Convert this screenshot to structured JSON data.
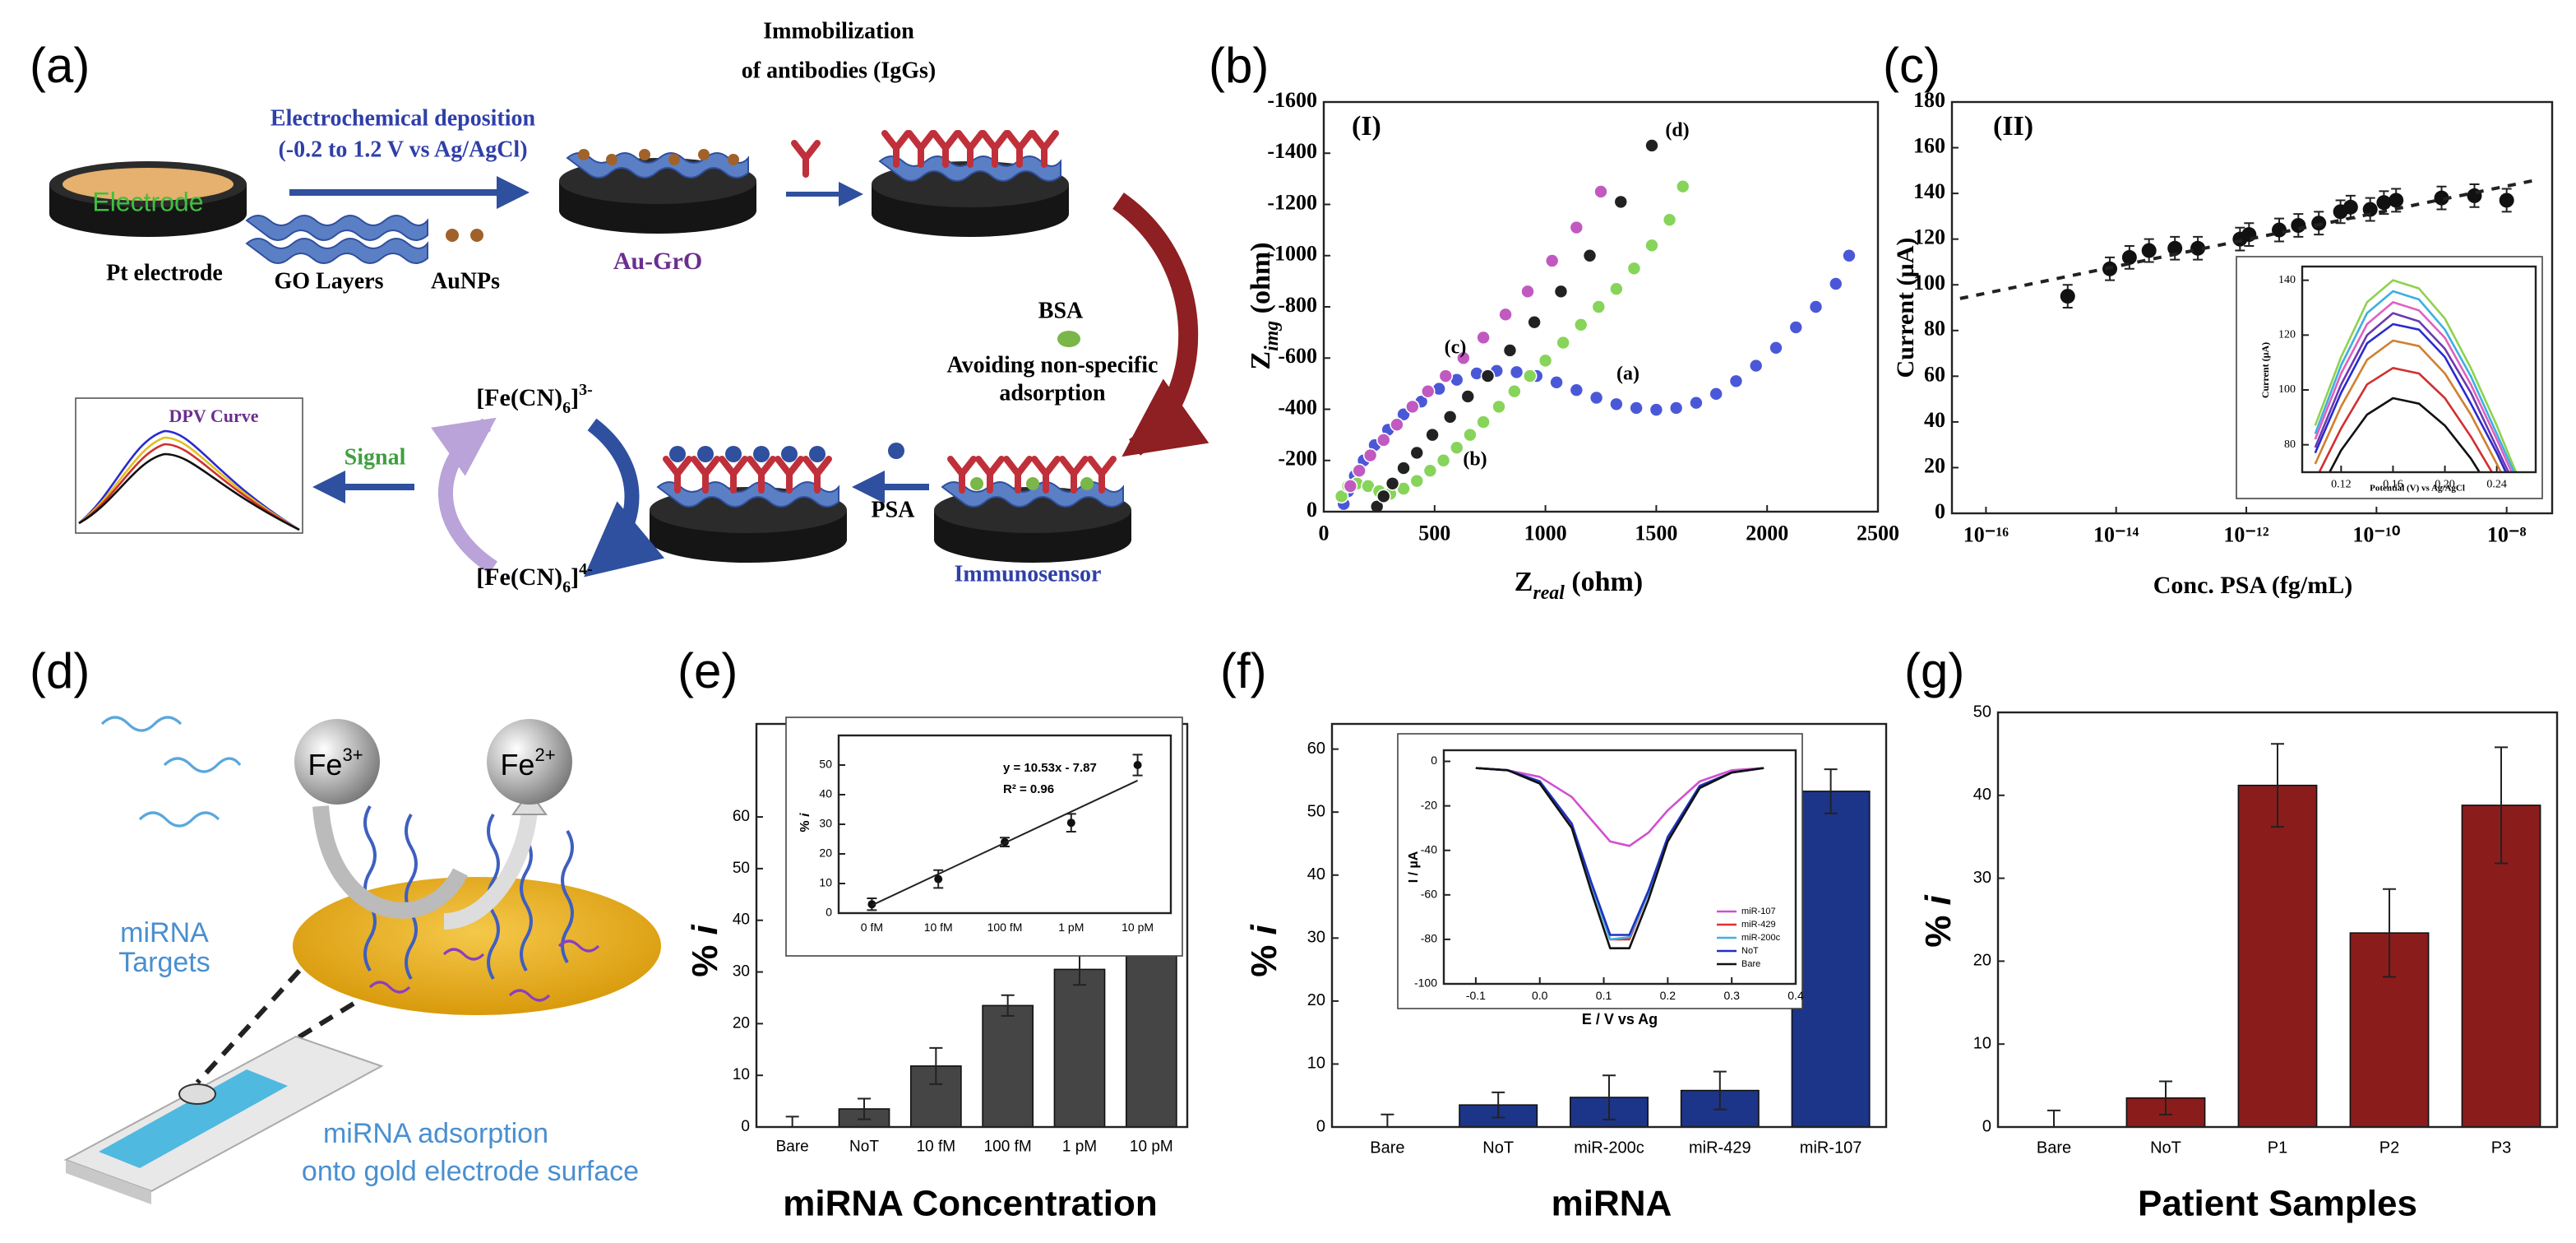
{
  "panel_labels": [
    "(a)",
    "(b)",
    "(c)",
    "(d)",
    "(e)",
    "(f)",
    "(g)"
  ],
  "diagram_a": {
    "electrode": "Electrode",
    "pt_electrode": "Pt electrode",
    "deposition": [
      "Electrochemical deposition",
      "(-0.2 to 1.2 V vs Ag/AgCl)"
    ],
    "go_layers": "GO Layers",
    "aunps": "AuNPs",
    "au_gro": "Au-GrO",
    "immobilization": [
      "Immobilization",
      "of antibodies (IgGs)"
    ],
    "bsa": "BSA",
    "avoiding": [
      "Avoiding non-specific",
      "adsorption"
    ],
    "immunosensor": "Immunosensor",
    "psa": "PSA",
    "fe_3": [
      "[Fe(CN)",
      "6",
      "]",
      "3-"
    ],
    "fe_4": [
      "[Fe(CN)",
      "6",
      "]",
      "4-"
    ],
    "signal": "Signal",
    "dpv_curve": "DPV Curve"
  },
  "diagram_d": {
    "fe3": [
      "Fe",
      "3+"
    ],
    "fe2": [
      "Fe",
      "2+"
    ],
    "targets": [
      "miRNA",
      "Targets"
    ],
    "adsorption": [
      "miRNA adsorption",
      "onto gold electrode surface"
    ]
  },
  "chart_data": [
    {
      "type": "scatter",
      "title": "(I)",
      "xlabel": [
        "Z",
        "real",
        " (ohm)"
      ],
      "ylabel": [
        "Z",
        "img",
        " (ohm)"
      ],
      "xlim": [
        0,
        2500
      ],
      "xticks": [
        0,
        500,
        1000,
        1500,
        2000,
        2500
      ],
      "ylim": [
        0,
        -1600
      ],
      "yticks": [
        0,
        -200,
        -400,
        -600,
        -800,
        -1000,
        -1200,
        -1400,
        -1600
      ],
      "series": [
        {
          "name": "(a)",
          "color": "#4a58d8",
          "x": [
            90,
            110,
            140,
            180,
            230,
            290,
            360,
            440,
            520,
            600,
            690,
            780,
            870,
            960,
            1050,
            1140,
            1230,
            1320,
            1410,
            1500,
            1590,
            1680,
            1770,
            1860,
            1950,
            2040,
            2130,
            2220,
            2310,
            2370
          ],
          "values": [
            -30,
            -80,
            -140,
            -200,
            -260,
            -320,
            -380,
            -430,
            -480,
            -515,
            -540,
            -550,
            -545,
            -530,
            -505,
            -475,
            -445,
            -420,
            -405,
            -398,
            -405,
            -425,
            -460,
            -510,
            -570,
            -640,
            -720,
            -800,
            -890,
            -1000
          ]
        },
        {
          "name": "(b)",
          "color": "#86d45a",
          "x": [
            80,
            110,
            150,
            200,
            250,
            300,
            360,
            420,
            480,
            540,
            600,
            660,
            720,
            790,
            860,
            930,
            1000,
            1080,
            1160,
            1240,
            1320,
            1400,
            1480,
            1560,
            1620
          ],
          "values": [
            -60,
            -100,
            -110,
            -100,
            -80,
            -70,
            -90,
            -120,
            -160,
            -200,
            -250,
            -300,
            -350,
            -410,
            -470,
            -530,
            -590,
            -660,
            -730,
            -800,
            -870,
            -950,
            -1040,
            -1140,
            -1270
          ]
        },
        {
          "name": "(c)",
          "color": "#c05ac0",
          "x": [
            120,
            160,
            210,
            270,
            330,
            400,
            470,
            550,
            630,
            720,
            820,
            920,
            1030,
            1140,
            1250
          ],
          "values": [
            -100,
            -160,
            -220,
            -280,
            -340,
            -410,
            -470,
            -530,
            -600,
            -680,
            -770,
            -860,
            -980,
            -1110,
            -1250
          ]
        },
        {
          "name": "(d)",
          "color": "#222222",
          "x": [
            240,
            270,
            310,
            360,
            420,
            490,
            570,
            650,
            740,
            840,
            950,
            1070,
            1200,
            1340,
            1480
          ],
          "values": [
            -20,
            -60,
            -110,
            -170,
            -230,
            -300,
            -370,
            -450,
            -530,
            -630,
            -740,
            -860,
            -1000,
            -1210,
            -1430
          ]
        }
      ]
    },
    {
      "type": "scatter",
      "title": "(II)",
      "xscale": "log",
      "xlabel": "Conc. PSA (fg/mL)",
      "ylabel": "Current (µA)",
      "xlim": [
        3e-17,
        5e-08
      ],
      "xticks": [
        {
          "value": 1e-16,
          "label": "10⁻¹⁶"
        },
        {
          "value": 1e-14,
          "label": "10⁻¹⁴"
        },
        {
          "value": 1e-12,
          "label": "10⁻¹²"
        },
        {
          "value": 1e-10,
          "label": "10⁻¹⁰"
        },
        {
          "value": 1e-08,
          "label": "10⁻⁸"
        }
      ],
      "ylim": [
        0,
        180
      ],
      "yticks": [
        0,
        20,
        40,
        60,
        80,
        100,
        120,
        140,
        160,
        180
      ],
      "color": "#111111",
      "x": [
        1.8e-15,
        8e-15,
        1.6e-14,
        3.2e-14,
        8e-14,
        1.8e-13,
        8e-13,
        1.1e-12,
        3.2e-12,
        6.3e-12,
        1.3e-11,
        2.8e-11,
        4e-11,
        8e-11,
        1.3e-10,
        2e-10,
        1e-09,
        3.2e-09,
        1e-08
      ],
      "values": [
        95,
        107,
        112,
        115,
        116,
        116,
        120,
        122,
        124,
        126,
        127,
        132,
        134,
        133,
        136,
        137,
        138,
        139,
        137
      ],
      "errors": [
        5,
        5,
        5,
        5,
        5,
        5,
        5,
        5,
        5,
        5,
        5,
        5,
        5,
        5,
        5,
        5,
        5,
        5,
        5
      ],
      "fit": {
        "x": [
          4e-17,
          3e-08
        ],
        "values": [
          94,
          146
        ]
      }
    },
    {
      "type": "line",
      "xlabel": "Potential (V) vs Ag/AgCl",
      "ylabel": "Current (µA)",
      "xlim": [
        0.09,
        0.27
      ],
      "xticks": [
        0.12,
        0.16,
        {
          "value": 0.2,
          "label": "0.20"
        },
        0.24
      ],
      "ylim": [
        70,
        145
      ],
      "yticks": [
        80,
        100,
        120,
        140
      ],
      "x": [
        0.1,
        0.12,
        0.14,
        0.16,
        0.18,
        0.2,
        0.22,
        0.24,
        0.26
      ],
      "series": [
        {
          "color": "#8fd14f",
          "values": [
            87,
            112,
            132,
            140,
            137,
            126,
            108,
            87,
            64
          ]
        },
        {
          "color": "#3cb0e0",
          "values": [
            84,
            109,
            128,
            136,
            133,
            122,
            105,
            84,
            63
          ]
        },
        {
          "color": "#e060c0",
          "values": [
            82,
            106,
            124,
            132,
            129,
            119,
            102,
            82,
            61
          ]
        },
        {
          "color": "#6a3ab0",
          "values": [
            79,
            102,
            120,
            128,
            125,
            115,
            99,
            79,
            59
          ]
        },
        {
          "color": "#2a2ad0",
          "values": [
            77,
            99,
            117,
            124,
            122,
            112,
            95,
            77,
            57
          ]
        },
        {
          "color": "#d08030",
          "values": [
            73,
            94,
            111,
            118,
            116,
            106,
            91,
            73,
            54
          ]
        },
        {
          "color": "#d03030",
          "values": [
            67,
            86,
            102,
            108,
            106,
            97,
            83,
            67,
            50
          ]
        },
        {
          "color": "#111111",
          "values": [
            60,
            78,
            91,
            97,
            95,
            87,
            75,
            60,
            45
          ]
        }
      ]
    },
    {
      "type": "bar",
      "xlabel": "miRNA Concentration",
      "ylabel": [
        "% ",
        "i"
      ],
      "color": "#454545",
      "categories": [
        "Bare",
        "NoT",
        "10 fM",
        "100 fM",
        "1 pM",
        "10 pM"
      ],
      "values": [
        0,
        3.5,
        11.8,
        23.5,
        30.5,
        51
      ],
      "errors": [
        2,
        2,
        3.5,
        2,
        3,
        3.5
      ],
      "ylim": [
        0,
        78
      ],
      "yticks": [
        0,
        10,
        20,
        30,
        40,
        50,
        60
      ]
    },
    {
      "type": "scatter",
      "ylabel": [
        "% ",
        "i"
      ],
      "color": "#111111",
      "categories": [
        "0 fM",
        "10 fM",
        "100 fM",
        "1 pM",
        "10 pM"
      ],
      "values": [
        3,
        11.5,
        24,
        30.5,
        50
      ],
      "errors": [
        2,
        3,
        1.5,
        3,
        3.5
      ],
      "fit": [
        2.66,
        13.19,
        23.72,
        34.25,
        44.78
      ],
      "annotations": [
        "y = 10.53x - 7.87",
        "R² = 0.96"
      ],
      "ylim": [
        0,
        60
      ],
      "yticks": [
        0,
        10,
        20,
        30,
        40,
        50
      ]
    },
    {
      "type": "bar",
      "xlabel": "miRNA",
      "ylabel": [
        "% ",
        "i"
      ],
      "color": "#1c3588",
      "categories": [
        "Bare",
        "NoT",
        "miR-200c",
        "miR-429",
        "miR-107"
      ],
      "values": [
        0,
        3.5,
        4.7,
        5.8,
        53.3
      ],
      "errors": [
        2,
        2,
        3.5,
        3,
        3.5
      ],
      "ylim": [
        0,
        64
      ],
      "yticks": [
        0,
        10,
        20,
        30,
        40,
        50,
        60
      ]
    },
    {
      "type": "line",
      "xlabel": "E / V vs Ag",
      "ylabel": "I / µA",
      "legend": "lower right",
      "xlim": [
        -0.15,
        0.4
      ],
      "xticks": [
        -0.1,
        {
          "value": 0,
          "label": "0.0"
        },
        0.1,
        0.2,
        0.3,
        0.4
      ],
      "ylim": [
        -100,
        5
      ],
      "yticks": [
        0,
        -20,
        -40,
        -60,
        -80,
        -100
      ],
      "x": [
        -0.1,
        -0.05,
        0,
        0.05,
        0.08,
        0.11,
        0.14,
        0.17,
        0.2,
        0.25,
        0.3,
        0.35
      ],
      "series": [
        {
          "name": "miR-107",
          "color": "#d050d0",
          "values": [
            -3,
            -4,
            -7,
            -16,
            -26,
            -36,
            -38,
            -32,
            -22,
            -9,
            -4,
            -3
          ]
        },
        {
          "name": "miR-429",
          "color": "#e03030",
          "values": [
            -3,
            -4,
            -9,
            -29,
            -55,
            -80,
            -80,
            -59,
            -35,
            -11,
            -5,
            -3
          ]
        },
        {
          "name": "miR-200c",
          "color": "#40b0e0",
          "values": [
            -3,
            -4,
            -9,
            -28,
            -55,
            -80,
            -79,
            -59,
            -34,
            -11,
            -5,
            -3
          ]
        },
        {
          "name": "NoT",
          "color": "#2030c0",
          "values": [
            -3,
            -4,
            -9,
            -28,
            -54,
            -78,
            -78,
            -58,
            -34,
            -11,
            -5,
            -3
          ]
        },
        {
          "name": "Bare",
          "color": "#111111",
          "values": [
            -3,
            -4,
            -10,
            -30,
            -58,
            -84,
            -84,
            -62,
            -36,
            -12,
            -5,
            -3
          ]
        }
      ]
    },
    {
      "type": "bar",
      "xlabel": "Patient Samples",
      "ylabel": [
        "% ",
        "i"
      ],
      "color": "#8b1c1c",
      "categories": [
        "Bare",
        "NoT",
        "P1",
        "P2",
        "P3"
      ],
      "values": [
        0,
        3.5,
        41.2,
        23.4,
        38.8
      ],
      "errors": [
        2,
        2,
        5,
        5.3,
        7
      ],
      "ylim": [
        0,
        50
      ],
      "yticks": [
        0,
        10,
        20,
        30,
        40,
        50
      ]
    }
  ]
}
